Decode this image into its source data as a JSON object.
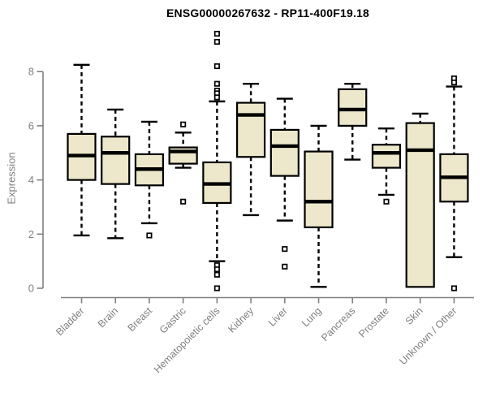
{
  "chart_data": {
    "type": "boxplot",
    "title": "ENSG00000267632 - RP11-400F19.18",
    "ylabel": "Expression",
    "xlabel": "",
    "ylim": [
      0,
      9.5
    ],
    "yticks": [
      0,
      2,
      4,
      6,
      8
    ],
    "grid": false,
    "categories": [
      "Bladder",
      "Brain",
      "Breast",
      "Gastric",
      "Hematopoietic cells",
      "Kidney",
      "Liver",
      "Lung",
      "Pancreas",
      "Prostate",
      "Skin",
      "Unknown / Other"
    ],
    "boxes": [
      {
        "category": "Bladder",
        "whisker_low": 1.95,
        "q1": 4.0,
        "median": 4.9,
        "q3": 5.7,
        "whisker_high": 8.25,
        "outliers": []
      },
      {
        "category": "Brain",
        "whisker_low": 1.85,
        "q1": 3.85,
        "median": 5.0,
        "q3": 5.6,
        "whisker_high": 6.6,
        "outliers": []
      },
      {
        "category": "Breast",
        "whisker_low": 2.4,
        "q1": 3.8,
        "median": 4.4,
        "q3": 4.95,
        "whisker_high": 6.15,
        "outliers": [
          1.95
        ]
      },
      {
        "category": "Gastric",
        "whisker_low": 4.45,
        "q1": 4.6,
        "median": 5.05,
        "q3": 5.2,
        "whisker_high": 5.75,
        "outliers": [
          6.05,
          3.2
        ]
      },
      {
        "category": "Hematopoietic cells",
        "whisker_low": 1.0,
        "q1": 3.15,
        "median": 3.85,
        "q3": 4.65,
        "whisker_high": 6.9,
        "outliers": [
          9.4,
          9.1,
          8.2,
          7.55,
          7.3,
          7.2,
          7.05,
          0.85,
          0.7,
          0.5,
          0.0
        ]
      },
      {
        "category": "Kidney",
        "whisker_low": 2.7,
        "q1": 4.85,
        "median": 6.4,
        "q3": 6.85,
        "whisker_high": 7.55,
        "outliers": []
      },
      {
        "category": "Liver",
        "whisker_low": 2.5,
        "q1": 4.15,
        "median": 5.25,
        "q3": 5.85,
        "whisker_high": 7.0,
        "outliers": [
          1.45,
          0.8
        ]
      },
      {
        "category": "Lung",
        "whisker_low": 0.05,
        "q1": 2.25,
        "median": 3.2,
        "q3": 5.05,
        "whisker_high": 6.0,
        "outliers": []
      },
      {
        "category": "Pancreas",
        "whisker_low": 4.75,
        "q1": 6.0,
        "median": 6.6,
        "q3": 7.35,
        "whisker_high": 7.55,
        "outliers": []
      },
      {
        "category": "Prostate",
        "whisker_low": 3.45,
        "q1": 4.45,
        "median": 5.0,
        "q3": 5.3,
        "whisker_high": 5.9,
        "outliers": [
          3.2
        ]
      },
      {
        "category": "Skin",
        "whisker_low": 0.05,
        "q1": 0.05,
        "median": 5.1,
        "q3": 6.1,
        "whisker_high": 6.45,
        "outliers": []
      },
      {
        "category": "Unknown / Other",
        "whisker_low": 1.15,
        "q1": 3.2,
        "median": 4.1,
        "q3": 4.95,
        "whisker_high": 7.45,
        "outliers": [
          7.75,
          7.6,
          0.0
        ]
      }
    ]
  },
  "colors": {
    "box_fill": "#EDE7CB",
    "box_border": "#000000",
    "median": "#000000",
    "whisker": "#000000",
    "outlier_fill": "#ffffff",
    "axis": "#808080",
    "tick_label": "#808080",
    "title": "#000000",
    "background": "#ffffff"
  }
}
